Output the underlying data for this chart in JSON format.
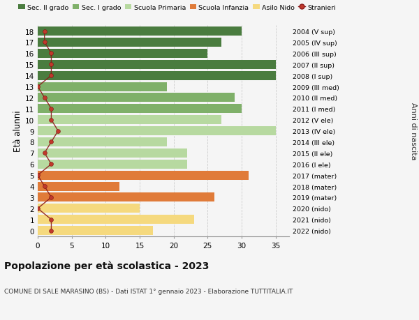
{
  "ages": [
    18,
    17,
    16,
    15,
    14,
    13,
    12,
    11,
    10,
    9,
    8,
    7,
    6,
    5,
    4,
    3,
    2,
    1,
    0
  ],
  "bar_values": [
    30,
    27,
    25,
    35,
    35,
    19,
    29,
    30,
    27,
    35,
    19,
    22,
    22,
    31,
    12,
    26,
    15,
    23,
    17
  ],
  "bar_colors": [
    "#4a7c3f",
    "#4a7c3f",
    "#4a7c3f",
    "#4a7c3f",
    "#4a7c3f",
    "#7fb069",
    "#7fb069",
    "#7fb069",
    "#b7d9a0",
    "#b7d9a0",
    "#b7d9a0",
    "#b7d9a0",
    "#b7d9a0",
    "#e07b39",
    "#e07b39",
    "#e07b39",
    "#f5d97e",
    "#f5d97e",
    "#f5d97e"
  ],
  "right_labels": [
    "2004 (V sup)",
    "2005 (IV sup)",
    "2006 (III sup)",
    "2007 (II sup)",
    "2008 (I sup)",
    "2009 (III med)",
    "2010 (II med)",
    "2011 (I med)",
    "2012 (V ele)",
    "2013 (IV ele)",
    "2014 (III ele)",
    "2015 (II ele)",
    "2016 (I ele)",
    "2017 (mater)",
    "2018 (mater)",
    "2019 (mater)",
    "2020 (nido)",
    "2021 (nido)",
    "2022 (nido)"
  ],
  "stranieri_values": [
    1,
    1,
    2,
    2,
    2,
    0,
    1,
    2,
    2,
    3,
    2,
    1,
    2,
    0,
    1,
    2,
    0,
    2,
    2
  ],
  "legend_labels": [
    "Sec. II grado",
    "Sec. I grado",
    "Scuola Primaria",
    "Scuola Infanzia",
    "Asilo Nido",
    "Stranieri"
  ],
  "legend_colors": [
    "#4a7c3f",
    "#7fb069",
    "#b7d9a0",
    "#e07b39",
    "#f5d97e",
    "#c0392b"
  ],
  "title": "Popolazione per età scolastica - 2023",
  "subtitle": "COMUNE DI SALE MARASINO (BS) - Dati ISTAT 1° gennaio 2023 - Elaborazione TUTTITALIA.IT",
  "ylabel": "Età alunni",
  "ylabel_right": "Anni di nascita",
  "xlim": [
    0,
    37
  ],
  "background_color": "#f5f5f5"
}
